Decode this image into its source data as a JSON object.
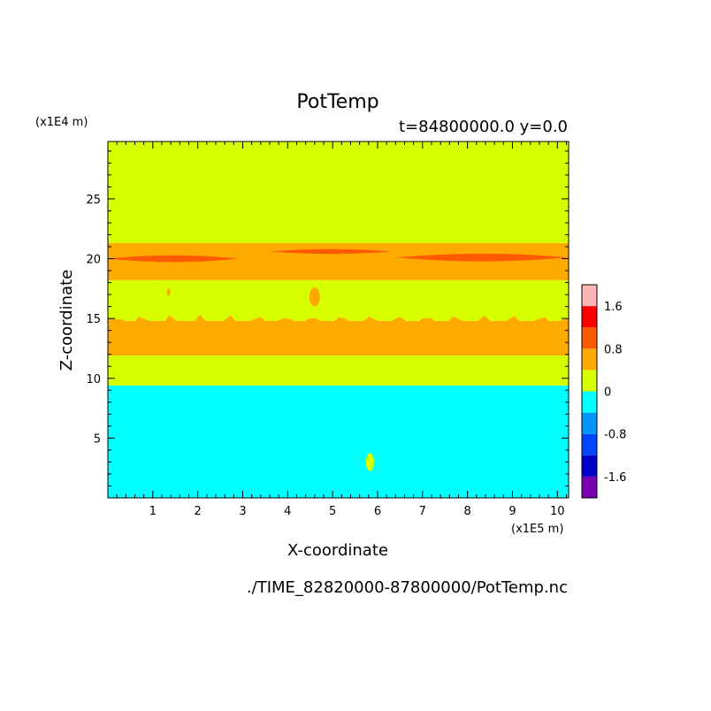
{
  "chart_data": {
    "type": "heatmap",
    "title": "PotTemp",
    "subtitle": "t=84800000.0 y=0.0",
    "xlabel": "X-coordinate",
    "ylabel": "Z-coordinate",
    "x_unit": "(x1E5 m)",
    "y_unit": "(x1E4 m)",
    "footer": "./TIME_82820000-87800000/PotTemp.nc",
    "xlim": [
      0,
      10.25
    ],
    "ylim": [
      0,
      29.8
    ],
    "x_ticks": [
      1,
      2,
      3,
      4,
      5,
      6,
      7,
      8,
      9,
      10
    ],
    "y_ticks": [
      5,
      10,
      15,
      20,
      25
    ],
    "colorbar": {
      "range": [
        -2,
        2
      ],
      "tick_values": [
        -1.6,
        -0.8,
        0,
        0.8,
        1.6
      ],
      "tick_labels": [
        "-1.6",
        "-0.8",
        "0",
        "0.8",
        "1.6"
      ],
      "levels": [
        {
          "from": -2.0,
          "to": -1.6,
          "color": "#7a00b4"
        },
        {
          "from": -1.6,
          "to": -1.2,
          "color": "#0000c8"
        },
        {
          "from": -1.2,
          "to": -0.8,
          "color": "#0046ff"
        },
        {
          "from": -0.8,
          "to": -0.4,
          "color": "#0096ff"
        },
        {
          "from": -0.4,
          "to": 0.0,
          "color": "#00ffff"
        },
        {
          "from": 0.0,
          "to": 0.4,
          "color": "#d7ff00"
        },
        {
          "from": 0.4,
          "to": 0.8,
          "color": "#ffaa00"
        },
        {
          "from": 0.8,
          "to": 1.2,
          "color": "#ff5a00"
        },
        {
          "from": 1.2,
          "to": 1.6,
          "color": "#ff0000"
        },
        {
          "from": 1.6,
          "to": 2.0,
          "color": "#ffb4b4"
        }
      ]
    },
    "bands": [
      {
        "z_from": 0,
        "z_to": 9.4,
        "level": -0.2,
        "color": "#00ffff"
      },
      {
        "z_from": 9.4,
        "z_to": 11.9,
        "level": 0.2,
        "color": "#d7ff00"
      },
      {
        "z_from": 11.9,
        "z_to": 14.8,
        "level": 0.6,
        "color": "#ffaa00"
      },
      {
        "z_from": 14.8,
        "z_to": 18.2,
        "level": 0.2,
        "color": "#d7ff00"
      },
      {
        "z_from": 18.2,
        "z_to": 21.3,
        "level": 0.6,
        "color": "#ffaa00"
      },
      {
        "z_from": 21.3,
        "z_to": 29.8,
        "level": 0.2,
        "color": "#d7ff00"
      }
    ],
    "warm_streaks": [
      {
        "x_from": 0.0,
        "x_to": 2.9,
        "z": 20.0,
        "half_height": 0.35,
        "color": "#ff5a00"
      },
      {
        "x_from": 3.6,
        "x_to": 6.3,
        "z": 20.6,
        "half_height": 0.25,
        "color": "#ff5a00"
      },
      {
        "x_from": 6.4,
        "x_to": 10.25,
        "z": 20.1,
        "half_height": 0.4,
        "color": "#ff5a00"
      }
    ],
    "blobs": [
      {
        "x": 4.6,
        "z": 16.8,
        "rx": 0.12,
        "rz": 0.8,
        "color": "#ffaa00"
      },
      {
        "x": 5.83,
        "z": 3.0,
        "rx": 0.09,
        "rz": 0.75,
        "color": "#d7ff00"
      },
      {
        "x": 1.35,
        "z": 17.2,
        "rx": 0.04,
        "rz": 0.3,
        "color": "#ffaa00"
      }
    ]
  }
}
